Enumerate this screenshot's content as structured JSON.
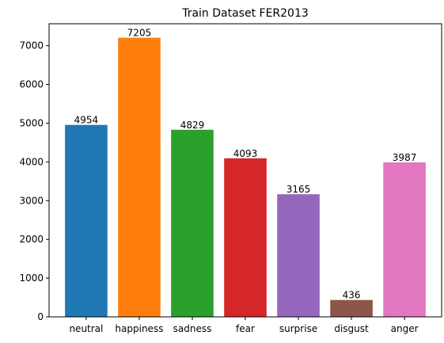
{
  "chart_data": {
    "type": "bar",
    "title": "Train Dataset FER2013",
    "xlabel": "",
    "ylabel": "",
    "categories": [
      "neutral",
      "happiness",
      "sadness",
      "fear",
      "surprise",
      "disgust",
      "anger"
    ],
    "values": [
      4954,
      7205,
      4829,
      4093,
      3165,
      436,
      3987
    ],
    "data_labels": [
      "4954",
      "7205",
      "4829",
      "4093",
      "3165",
      "436",
      "3987"
    ],
    "bar_colors": [
      "#1f77b4",
      "#ff7f0e",
      "#2ca02c",
      "#d62728",
      "#9467bd",
      "#8c564b",
      "#e377c2"
    ],
    "ylim": [
      0,
      7565
    ],
    "yticks": [
      0,
      1000,
      2000,
      3000,
      4000,
      5000,
      6000,
      7000
    ],
    "ytick_labels": [
      "0",
      "1000",
      "2000",
      "3000",
      "4000",
      "5000",
      "6000",
      "7000"
    ],
    "grid": false,
    "legend": "none"
  }
}
